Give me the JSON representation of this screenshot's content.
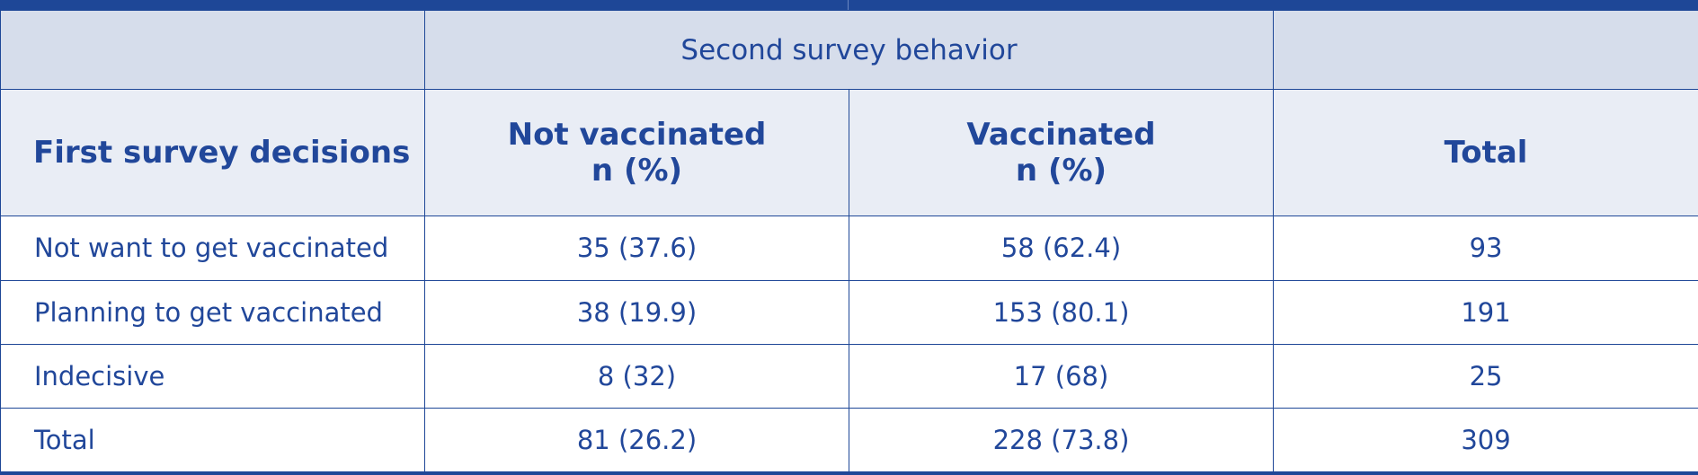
{
  "table": {
    "group_header": "Second survey behavior",
    "columns": {
      "first": "First survey decisions",
      "not_vaccinated": {
        "line1": "Not vaccinated",
        "line2": "n (%)"
      },
      "vaccinated": {
        "line1": "Vaccinated",
        "line2": "n (%)"
      },
      "total": "Total"
    },
    "rows": [
      {
        "label": "Not want to get vaccinated",
        "not_vaccinated": "35 (37.6)",
        "vaccinated": "58 (62.4)",
        "total": "93"
      },
      {
        "label": "Planning to get vaccinated",
        "not_vaccinated": "38 (19.9)",
        "vaccinated": "153 (80.1)",
        "total": "191"
      },
      {
        "label": "Indecisive",
        "not_vaccinated": "8 (32)",
        "vaccinated": "17 (68)",
        "total": "25"
      },
      {
        "label": "Total",
        "not_vaccinated": "81 (26.2)",
        "vaccinated": "228 (73.8)",
        "total": "309"
      }
    ]
  },
  "colors": {
    "accent": "#1e4797",
    "text": "#21479a",
    "group_header_bg": "#d6ddeb",
    "column_header_bg": "#e9edf5"
  }
}
